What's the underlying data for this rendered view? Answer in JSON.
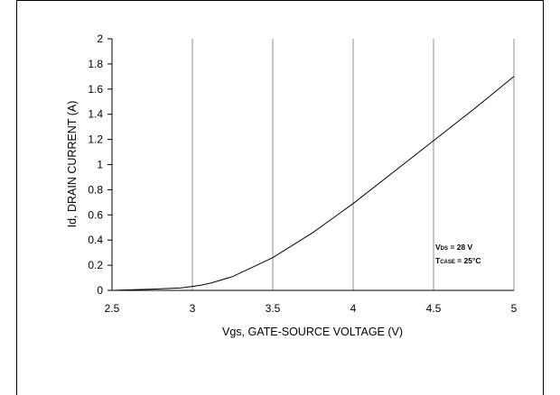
{
  "chart_data": {
    "type": "line",
    "xlabel": "Vgs, GATE-SOURCE VOLTAGE  (V)",
    "ylabel": "Id, DRAIN CURRENT (A)",
    "xlim": [
      2.5,
      5
    ],
    "ylim": [
      0,
      2
    ],
    "x_ticks": [
      "2.5",
      "3",
      "3.5",
      "4",
      "4.5",
      "5"
    ],
    "y_ticks": [
      "0",
      "0.2",
      "0.4",
      "0.6",
      "0.8",
      "1",
      "1.2",
      "1.4",
      "1.6",
      "1.8",
      "2"
    ],
    "grid": "vertical",
    "series": [
      {
        "x": [
          2.5,
          2.75,
          2.93,
          3.05,
          3.12,
          3.25,
          3.5,
          3.75,
          4.0,
          4.25,
          4.5,
          4.75,
          5.0
        ],
        "y": [
          0.0,
          0.01,
          0.02,
          0.04,
          0.06,
          0.11,
          0.26,
          0.46,
          0.69,
          0.94,
          1.19,
          1.44,
          1.7
        ]
      }
    ],
    "annotations": {
      "vds": {
        "main": "V",
        "sub": "DS",
        "rest": " = 28 V"
      },
      "tcase": {
        "main": "T",
        "sub": "CASE",
        "rest": " = 25°C"
      }
    }
  }
}
